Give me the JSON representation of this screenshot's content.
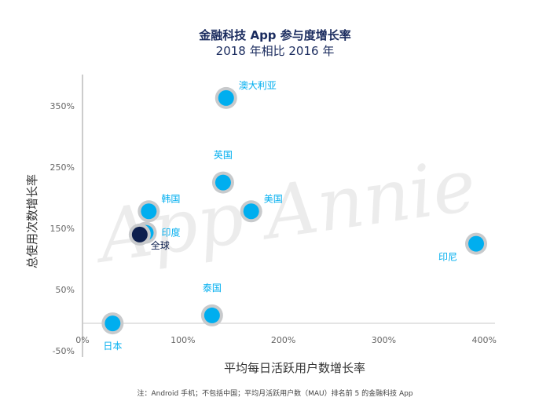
{
  "chart_data": {
    "type": "scatter",
    "title": "金融科技 App 参与度增长率",
    "subtitle": "2018 年相比 2016 年",
    "xlabel": "平均每日活跃用户数增长率",
    "ylabel": "总使用次数增长率",
    "xlim": [
      0,
      410
    ],
    "ylim": [
      -60,
      400
    ],
    "x_ticks": [
      0,
      100,
      200,
      300,
      400
    ],
    "x_tick_labels": [
      "0%",
      "100%",
      "200%",
      "300%",
      "400%"
    ],
    "y_ticks": [
      -50,
      50,
      150,
      250,
      350
    ],
    "y_tick_labels": [
      "-50%",
      "50%",
      "150%",
      "250%",
      "350%"
    ],
    "watermark": "App Annie",
    "note": "注：Android 手机；不包括中国；平均月活跃用户数（MAU）排名前 5 的金融科技 App",
    "colors": {
      "point": "#00aeef",
      "global": "#0d1f4e",
      "ring": "#c8cacc",
      "label": "#00aeef"
    },
    "points": [
      {
        "name": "澳大利亚",
        "x": 143,
        "y": 363,
        "label_pos": "upper-right"
      },
      {
        "name": "英国",
        "x": 140,
        "y": 225,
        "label_pos": "above"
      },
      {
        "name": "美国",
        "x": 168,
        "y": 178,
        "label_pos": "upper-right"
      },
      {
        "name": "韩国",
        "x": 66,
        "y": 178,
        "label_pos": "upper-right"
      },
      {
        "name": "印度",
        "x": 63,
        "y": 143,
        "label_pos": "right"
      },
      {
        "name": "全球",
        "x": 57,
        "y": 140,
        "label_pos": "lower-right",
        "highlight": true
      },
      {
        "name": "印尼",
        "x": 392,
        "y": 125,
        "label_pos": "lower-left"
      },
      {
        "name": "泰国",
        "x": 129,
        "y": 8,
        "label_pos": "above"
      },
      {
        "name": "日本",
        "x": 30,
        "y": -5,
        "label_pos": "below"
      }
    ]
  }
}
